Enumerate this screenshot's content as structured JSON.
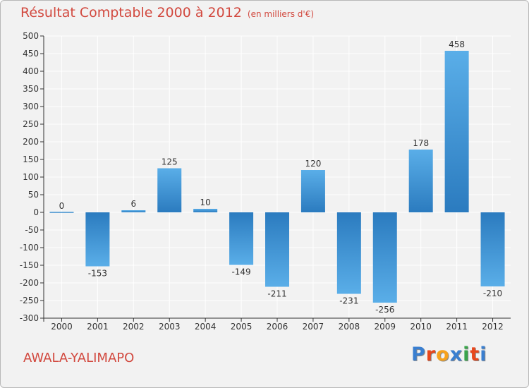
{
  "header": {
    "title": "Résultat Comptable 2000 à 2012",
    "subtitle": "(en milliers d'€)"
  },
  "footer": {
    "location": "AWALA-YALIMAPO",
    "logo_letters": [
      "P",
      "r",
      "o",
      "x",
      "i",
      "t",
      "i"
    ],
    "logo_colors": [
      "#3a7fd0",
      "#e8471c",
      "#f7a21b",
      "#3a7fd0",
      "#3aa54b",
      "#e8471c",
      "#3a7fd0"
    ]
  },
  "colors": {
    "title": "#d2493f",
    "bar_light": "#5aaee8",
    "bar_dark": "#2b7bbf",
    "axis": "#333333",
    "grid": "#ffffff"
  },
  "chart_data": {
    "type": "bar",
    "title": "Résultat Comptable 2000 à 2012",
    "subtitle": "(en milliers d'€)",
    "xlabel": "",
    "ylabel": "",
    "categories": [
      "2000",
      "2001",
      "2002",
      "2003",
      "2004",
      "2005",
      "2006",
      "2007",
      "2008",
      "2009",
      "2010",
      "2011",
      "2012"
    ],
    "values": [
      0,
      -153,
      6,
      125,
      10,
      -149,
      -211,
      120,
      -231,
      -256,
      178,
      458,
      -210
    ],
    "value_labels": [
      "0",
      "-153",
      "6",
      "125",
      "10",
      "-149",
      "-211",
      "120",
      "-231",
      "-256",
      "178",
      "458",
      "-210"
    ],
    "ylim": [
      -300,
      500
    ],
    "yticks": [
      500,
      450,
      400,
      350,
      300,
      250,
      200,
      150,
      100,
      50,
      0,
      -50,
      -100,
      -150,
      -200,
      -250,
      -300
    ],
    "ytick_labels": [
      "500",
      "450",
      "400",
      "350",
      "300",
      "250",
      "200",
      "150",
      "100",
      "50",
      "0",
      "-50",
      "-100",
      "-150",
      "-200",
      "-250",
      "-300"
    ],
    "grid": true,
    "legend": "none"
  }
}
